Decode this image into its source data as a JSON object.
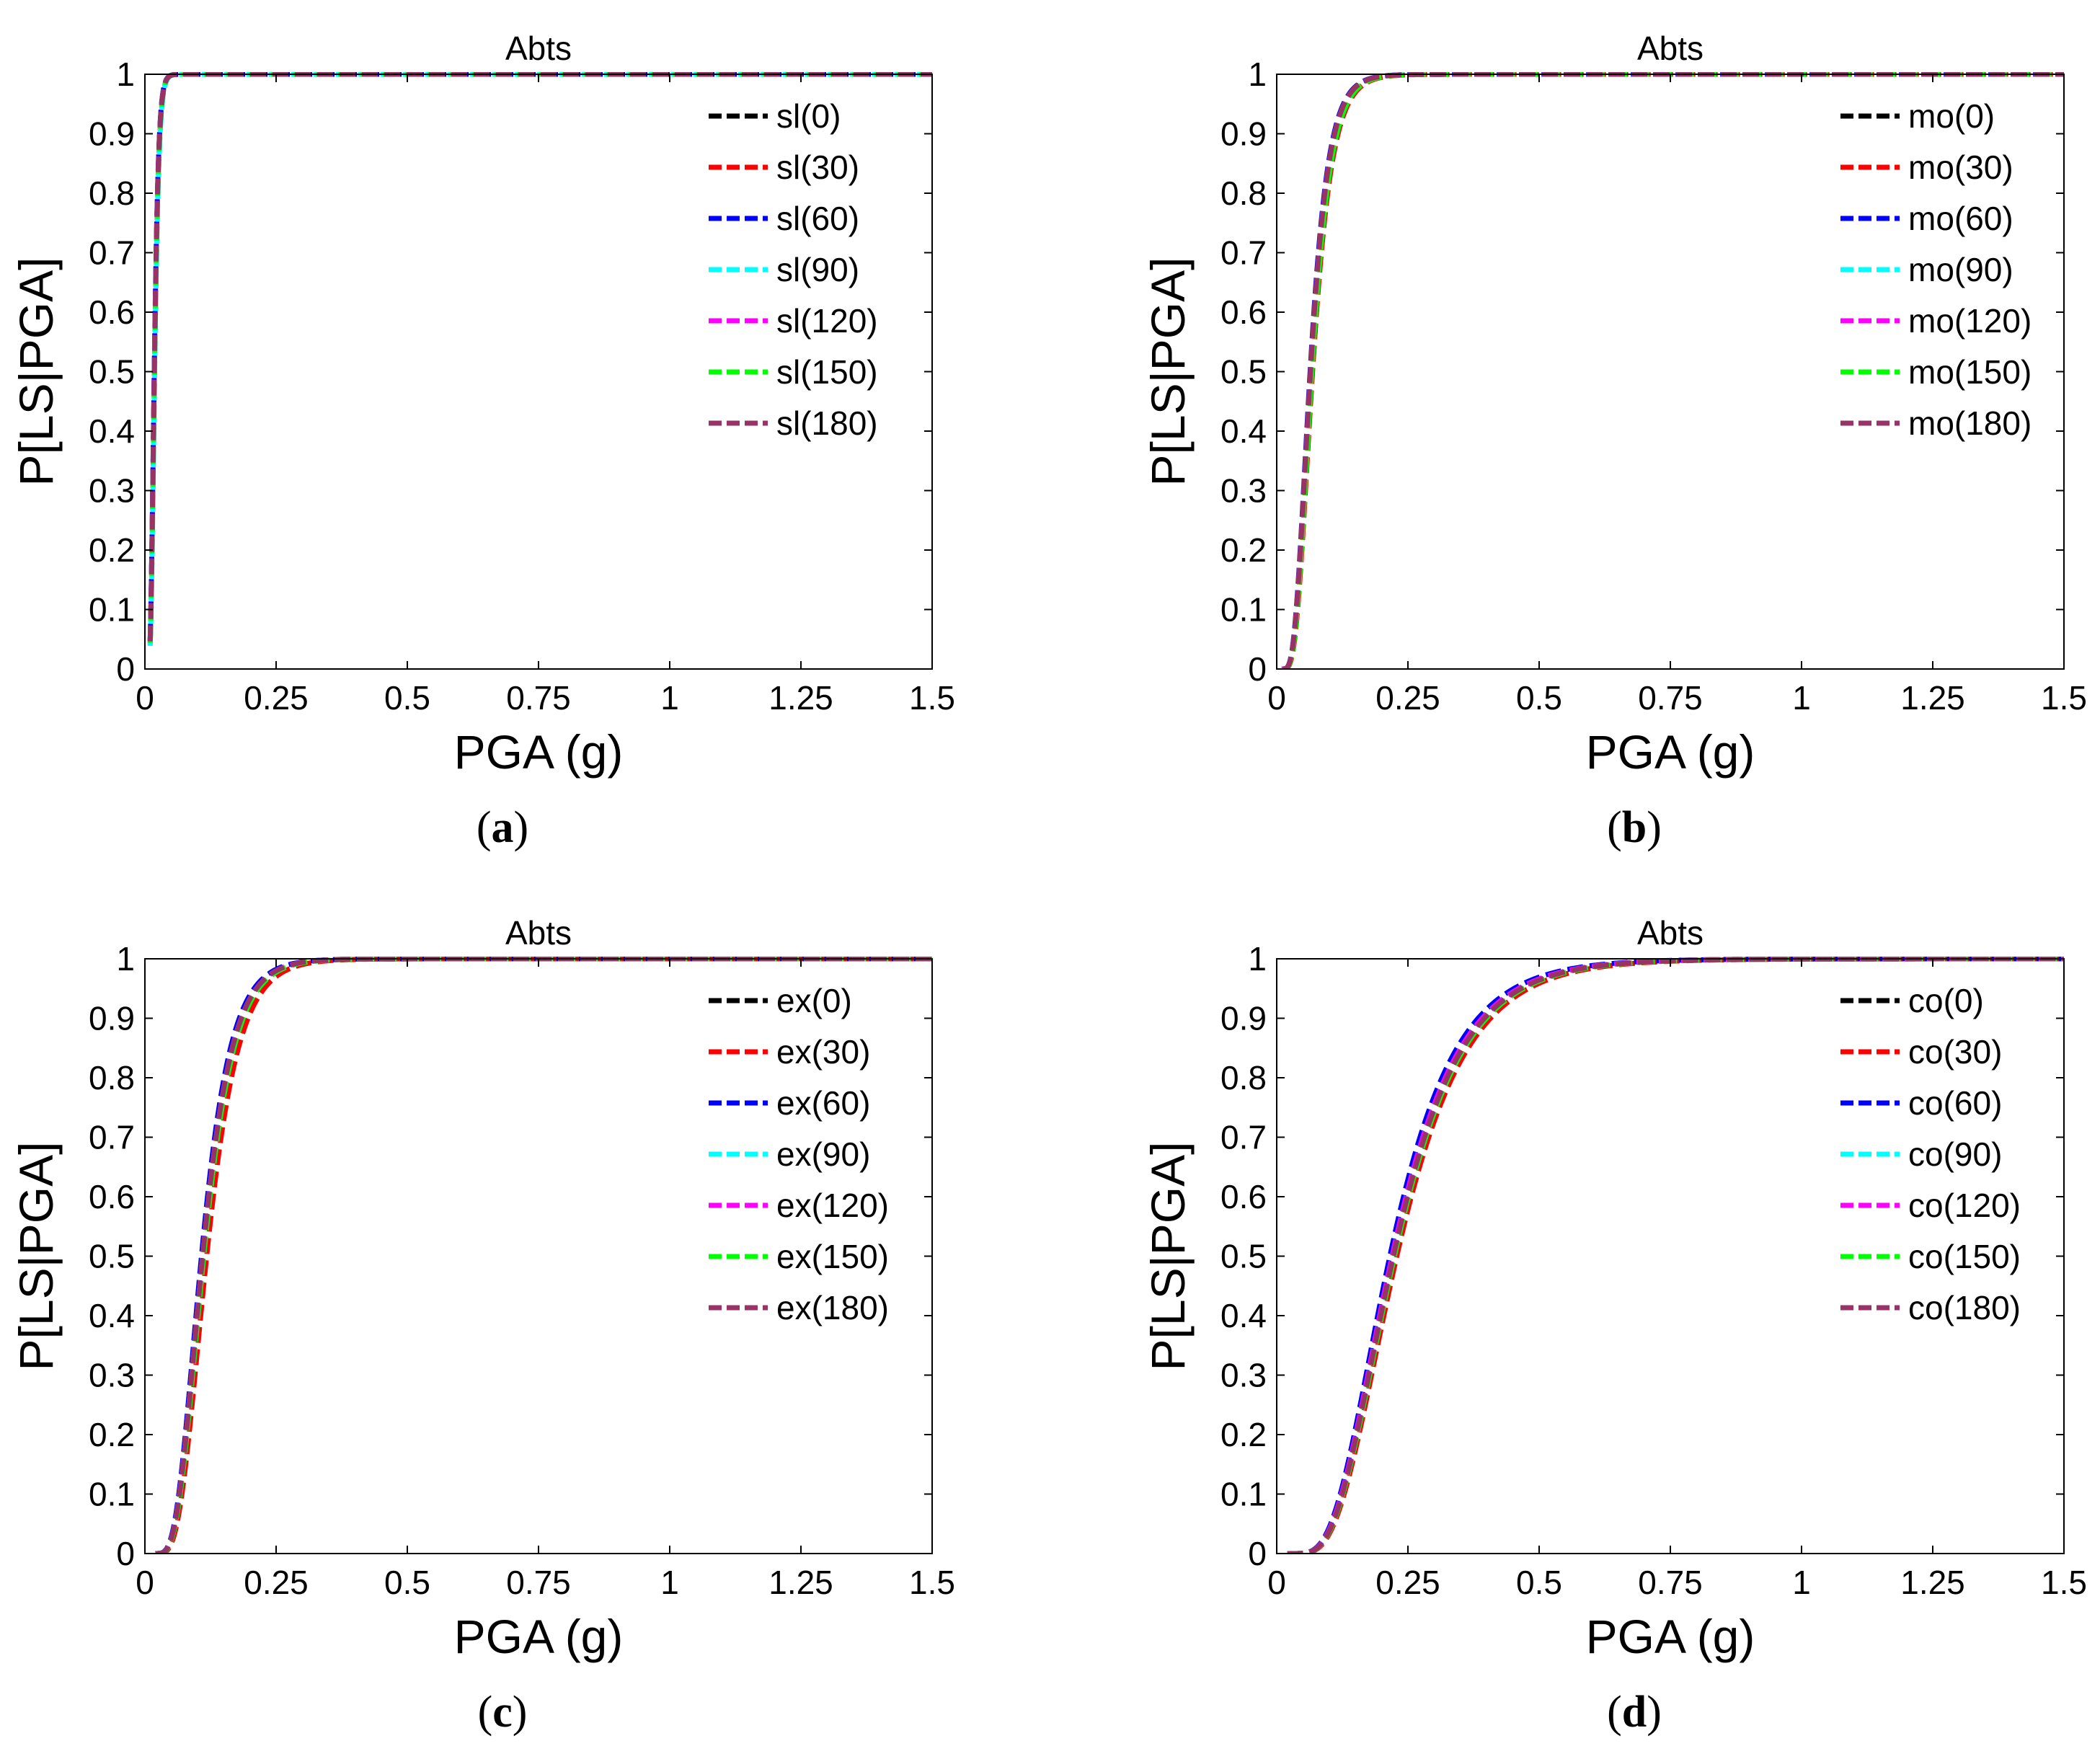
{
  "chart_data": [
    {
      "type": "line",
      "panel_label": "a",
      "title": "Abts",
      "xlabel": "PGA (g)",
      "ylabel": "P[LS|PGA]",
      "xlim": [
        0,
        1.5
      ],
      "ylim": [
        0,
        1
      ],
      "xticks": [
        0,
        0.25,
        0.5,
        0.75,
        1,
        1.25,
        1.5
      ],
      "xtick_labels": [
        "0",
        "0.25",
        "0.5",
        "0.75",
        "1",
        "1.25",
        "1.5"
      ],
      "yticks": [
        0,
        0.1,
        0.2,
        0.3,
        0.4,
        0.5,
        0.6,
        0.7,
        0.8,
        0.9,
        1
      ],
      "ytick_labels": [
        "0",
        "0.1",
        "0.2",
        "0.3",
        "0.4",
        "0.5",
        "0.6",
        "0.7",
        "0.8",
        "0.9",
        "1"
      ],
      "legend_position": "top-right",
      "line_style": "dashed",
      "fragility": {
        "median": 0.018,
        "beta": 0.35
      },
      "x_start": 0.01,
      "series": [
        {
          "name": "sl(0)",
          "color": "#000000",
          "median_factor": 1.0
        },
        {
          "name": "sl(30)",
          "color": "#ff0000",
          "median_factor": 1.02
        },
        {
          "name": "sl(60)",
          "color": "#0000ff",
          "median_factor": 0.99
        },
        {
          "name": "sl(90)",
          "color": "#00ffff",
          "median_factor": 1.03
        },
        {
          "name": "sl(120)",
          "color": "#ff00ff",
          "median_factor": 1.0
        },
        {
          "name": "sl(150)",
          "color": "#00ff00",
          "median_factor": 1.01
        },
        {
          "name": "sl(180)",
          "color": "#993366",
          "median_factor": 1.0
        }
      ]
    },
    {
      "type": "line",
      "panel_label": "b",
      "title": "Abts",
      "xlabel": "PGA (g)",
      "ylabel": "P[LS|PGA]",
      "xlim": [
        0,
        1.5
      ],
      "ylim": [
        0,
        1
      ],
      "xticks": [
        0,
        0.25,
        0.5,
        0.75,
        1,
        1.25,
        1.5
      ],
      "xtick_labels": [
        "0",
        "0.25",
        "0.5",
        "0.75",
        "1",
        "1.25",
        "1.5"
      ],
      "yticks": [
        0,
        0.1,
        0.2,
        0.3,
        0.4,
        0.5,
        0.6,
        0.7,
        0.8,
        0.9,
        1
      ],
      "ytick_labels": [
        "0",
        "0.1",
        "0.2",
        "0.3",
        "0.4",
        "0.5",
        "0.6",
        "0.7",
        "0.8",
        "0.9",
        "1"
      ],
      "legend_position": "top-right",
      "line_style": "dashed",
      "fragility": {
        "median": 0.065,
        "beta": 0.42
      },
      "x_start": 0.012,
      "series": [
        {
          "name": "mo(0)",
          "color": "#000000",
          "median_factor": 1.0
        },
        {
          "name": "mo(30)",
          "color": "#ff0000",
          "median_factor": 1.05
        },
        {
          "name": "mo(60)",
          "color": "#0000ff",
          "median_factor": 0.98
        },
        {
          "name": "mo(90)",
          "color": "#00ffff",
          "median_factor": 1.0
        },
        {
          "name": "mo(120)",
          "color": "#ff00ff",
          "median_factor": 1.0
        },
        {
          "name": "mo(150)",
          "color": "#00ff00",
          "median_factor": 1.03
        },
        {
          "name": "mo(180)",
          "color": "#993366",
          "median_factor": 0.99
        }
      ]
    },
    {
      "type": "line",
      "panel_label": "c",
      "title": "Abts",
      "xlabel": "PGA (g)",
      "ylabel": "P[LS|PGA]",
      "xlim": [
        0,
        1.5
      ],
      "ylim": [
        0,
        1
      ],
      "xticks": [
        0,
        0.25,
        0.5,
        0.75,
        1,
        1.25,
        1.5
      ],
      "xtick_labels": [
        "0",
        "0.25",
        "0.5",
        "0.75",
        "1",
        "1.25",
        "1.5"
      ],
      "yticks": [
        0,
        0.1,
        0.2,
        0.3,
        0.4,
        0.5,
        0.6,
        0.7,
        0.8,
        0.9,
        1
      ],
      "ytick_labels": [
        "0",
        "0.1",
        "0.2",
        "0.3",
        "0.4",
        "0.5",
        "0.6",
        "0.7",
        "0.8",
        "0.9",
        "1"
      ],
      "legend_position": "top-right",
      "line_style": "dashed",
      "fragility": {
        "median": 0.11,
        "beta": 0.4
      },
      "x_start": 0.02,
      "series": [
        {
          "name": "ex(0)",
          "color": "#000000",
          "median_factor": 1.0
        },
        {
          "name": "ex(30)",
          "color": "#ff0000",
          "median_factor": 1.07
        },
        {
          "name": "ex(60)",
          "color": "#0000ff",
          "median_factor": 0.98
        },
        {
          "name": "ex(90)",
          "color": "#00ffff",
          "median_factor": 1.0
        },
        {
          "name": "ex(120)",
          "color": "#ff00ff",
          "median_factor": 1.0
        },
        {
          "name": "ex(150)",
          "color": "#00ff00",
          "median_factor": 1.02
        },
        {
          "name": "ex(180)",
          "color": "#993366",
          "median_factor": 1.0
        }
      ]
    },
    {
      "type": "line",
      "panel_label": "d",
      "title": "Abts",
      "xlabel": "PGA (g)",
      "ylabel": "P[LS|PGA]",
      "xlim": [
        0,
        1.5
      ],
      "ylim": [
        0,
        1
      ],
      "xticks": [
        0,
        0.25,
        0.5,
        0.75,
        1,
        1.25,
        1.5
      ],
      "xtick_labels": [
        "0",
        "0.25",
        "0.5",
        "0.75",
        "1",
        "1.25",
        "1.5"
      ],
      "yticks": [
        0,
        0.1,
        0.2,
        0.3,
        0.4,
        0.5,
        0.6,
        0.7,
        0.8,
        0.9,
        1
      ],
      "ytick_labels": [
        "0",
        "0.1",
        "0.2",
        "0.3",
        "0.4",
        "0.5",
        "0.6",
        "0.7",
        "0.8",
        "0.9",
        "1"
      ],
      "legend_position": "top-right",
      "line_style": "dashed",
      "fragility": {
        "median": 0.22,
        "beta": 0.45
      },
      "x_start": 0.02,
      "series": [
        {
          "name": "co(0)",
          "color": "#000000",
          "median_factor": 1.0
        },
        {
          "name": "co(30)",
          "color": "#ff0000",
          "median_factor": 1.04
        },
        {
          "name": "co(60)",
          "color": "#0000ff",
          "median_factor": 0.98
        },
        {
          "name": "co(90)",
          "color": "#00ffff",
          "median_factor": 1.0
        },
        {
          "name": "co(120)",
          "color": "#ff00ff",
          "median_factor": 1.0
        },
        {
          "name": "co(150)",
          "color": "#00ff00",
          "median_factor": 1.02
        },
        {
          "name": "co(180)",
          "color": "#993366",
          "median_factor": 1.01
        }
      ]
    }
  ]
}
